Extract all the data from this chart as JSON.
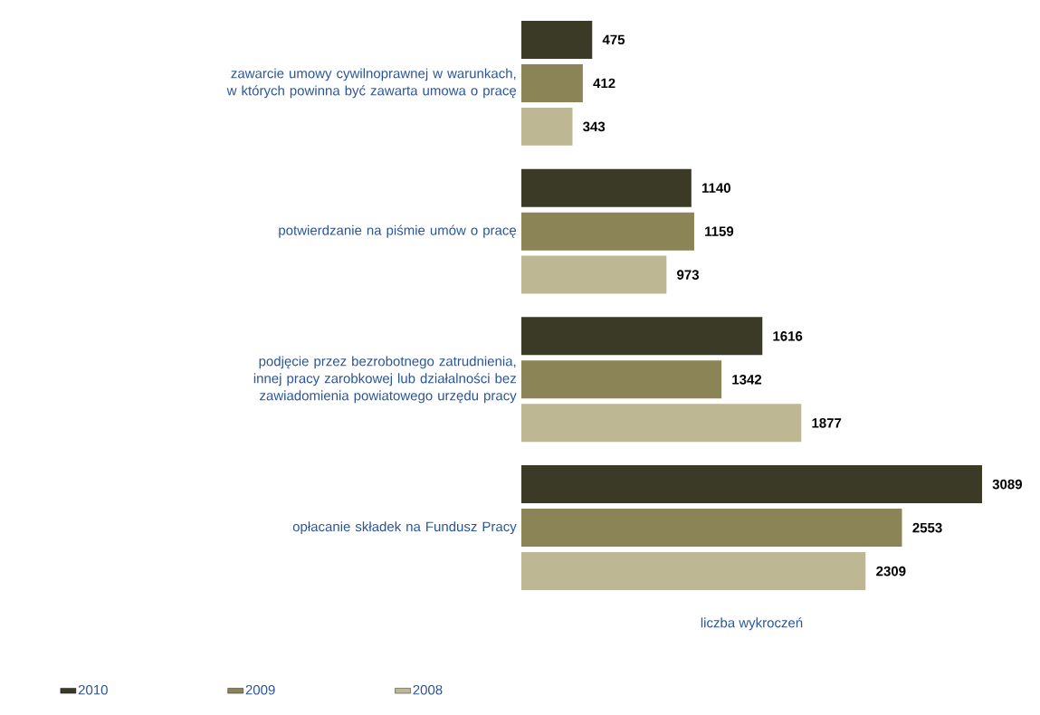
{
  "chart_data": {
    "type": "bar",
    "orientation": "horizontal",
    "xlabel": "liczba wykroczeń",
    "categories": [
      "zawarcie umowy cywilnoprawnej w warunkach, w których powinna być zawarta umowa o pracę",
      "potwierdzanie na piśmie umów o pracę",
      "podjęcie przez bezrobotnego zatrudnienia, innej pracy zarobkowej lub działalności bez zawiadomienia powiatowego urzędu pracy",
      "opłacanie składek na Fundusz Pracy"
    ],
    "series": [
      {
        "name": "2010",
        "color": "#3b3a26",
        "values": [
          475,
          1140,
          1616,
          3089
        ]
      },
      {
        "name": "2009",
        "color": "#8a8456",
        "values": [
          412,
          1159,
          1342,
          2553
        ]
      },
      {
        "name": "2008",
        "color": "#bdb793",
        "values": [
          343,
          973,
          1877,
          2309
        ]
      }
    ],
    "data_labels": true,
    "legend": "bottom left"
  }
}
